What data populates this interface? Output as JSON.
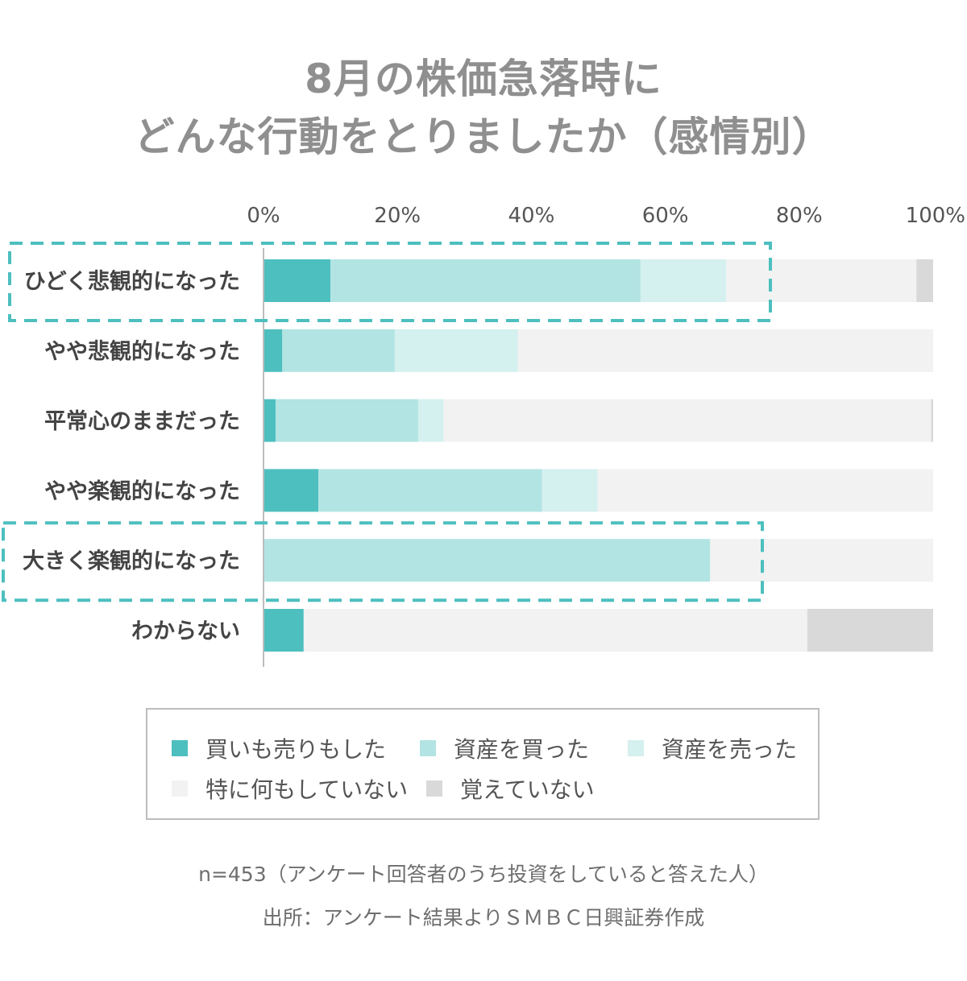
{
  "title_lines": [
    "8月の株価急落時に",
    "どんな行動をとりましたか（感情別）"
  ],
  "chart_data": {
    "type": "bar",
    "orientation": "horizontal",
    "stacked": true,
    "title": "8月の株価急落時に どんな行動をとりましたか（感情別）",
    "xlabel": "",
    "ylabel": "",
    "xlim": [
      0,
      100
    ],
    "ticks": [
      "0%",
      "20%",
      "40%",
      "60%",
      "80%",
      "100%"
    ],
    "categories": [
      "ひどく悲観的になった",
      "やや悲観的になった",
      "平常心のままだった",
      "やや楽観的になった",
      "大きく楽観的になった",
      "わからない"
    ],
    "series": [
      {
        "name": "買いも売りもした",
        "color": "#4dbfbf",
        "values": [
          10,
          2.8,
          1.8,
          8.2,
          0,
          6
        ]
      },
      {
        "name": "資産を買った",
        "color": "#b2e4e3",
        "values": [
          46.3,
          16.8,
          21.3,
          33.4,
          66.7,
          0
        ]
      },
      {
        "name": "資産を売った",
        "color": "#d4f0ef",
        "values": [
          12.8,
          18.4,
          3.8,
          8.3,
          0,
          0
        ]
      },
      {
        "name": "特に何もしていない",
        "color": "#f2f2f2",
        "values": [
          28.4,
          62,
          72.8,
          50.1,
          33.3,
          75.2
        ]
      },
      {
        "name": "覚えていない",
        "color": "#d9d9d9",
        "values": [
          2.5,
          0,
          0.3,
          0,
          0,
          18.8
        ]
      }
    ],
    "highlighted_categories": [
      "ひどく悲観的になった",
      "大きく楽観的になった"
    ],
    "highlight_color": "#4dbfbf",
    "legend_position": "bottom"
  },
  "footnotes": [
    "n=453（アンケート回答者のうち投資をしていると答えた人）",
    "出所：アンケート結果よりＳＭＢＣ日興証券作成"
  ]
}
